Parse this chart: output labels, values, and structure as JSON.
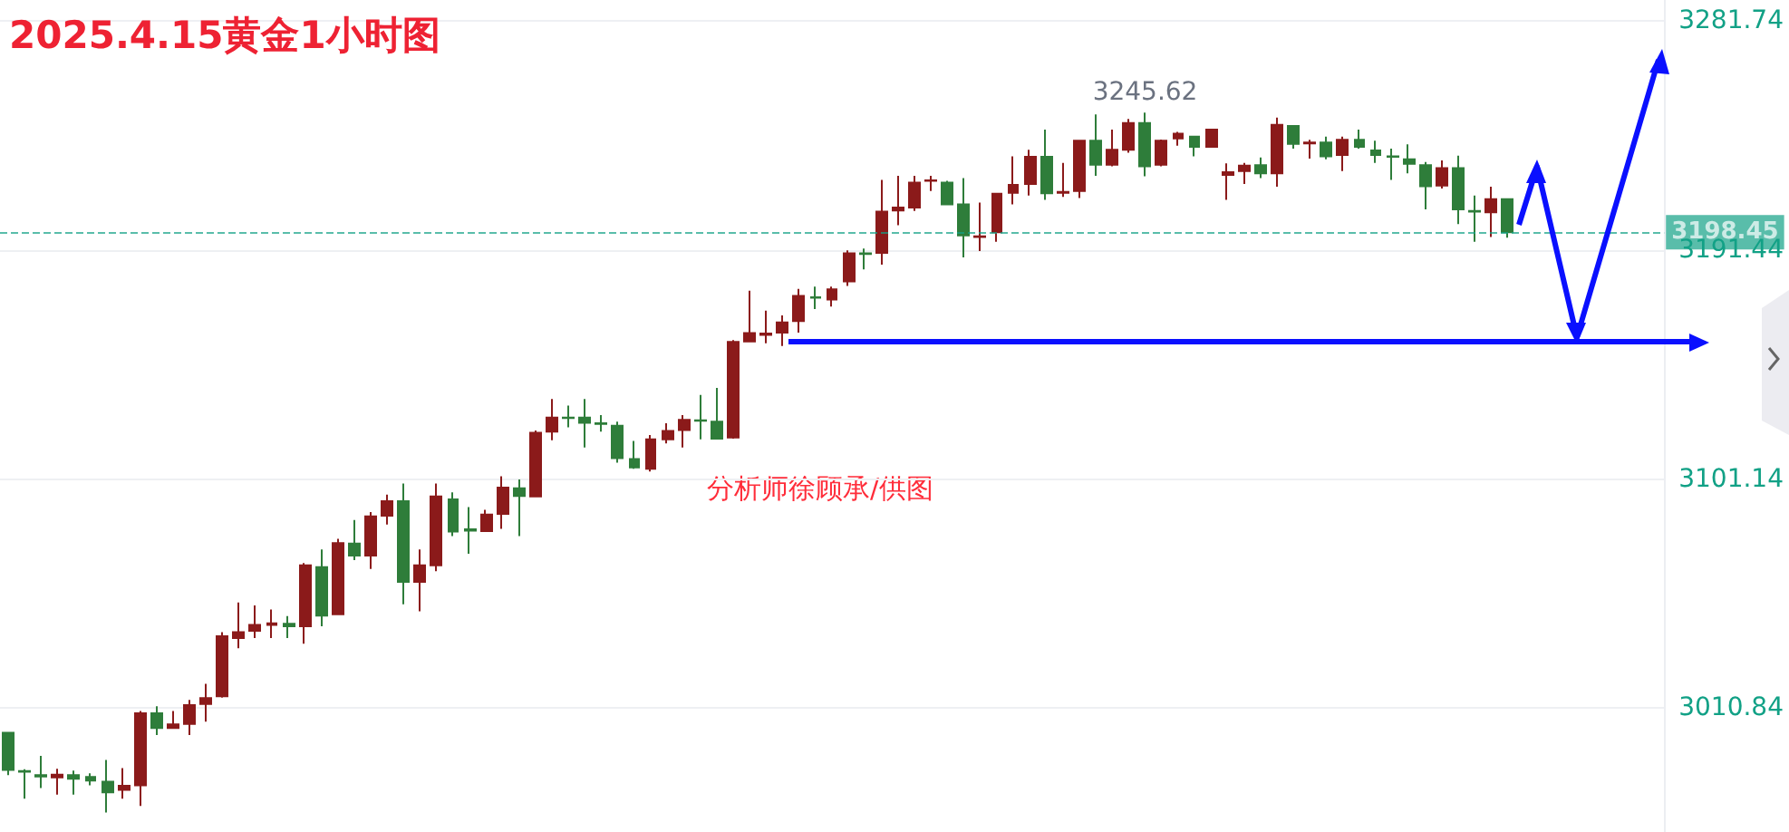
{
  "chart_data": {
    "type": "candlestick",
    "title": "2025.4.15黄金1小时图",
    "annotations": [
      {
        "text": "3245.62",
        "y": 3245.62
      },
      "分析师徐顾承/供图"
    ],
    "categories": [
      null,
      null,
      null,
      null,
      null,
      null,
      null,
      null,
      null,
      null,
      null,
      null,
      null,
      null,
      null,
      null,
      null,
      null,
      null,
      null,
      null,
      null,
      null,
      null,
      null,
      null,
      null,
      null,
      null,
      null,
      null,
      null,
      null,
      null,
      null,
      null,
      null,
      null,
      null,
      null,
      null,
      null,
      null,
      null,
      null,
      null,
      null,
      null,
      null,
      null,
      null,
      null,
      null,
      null,
      null,
      null,
      null,
      null,
      null,
      null,
      null,
      null,
      null,
      null,
      null,
      null,
      null,
      null,
      null,
      null,
      null,
      null,
      null,
      null,
      null,
      null,
      null,
      null,
      null,
      null,
      null,
      null,
      null,
      null,
      null,
      null,
      null,
      null,
      null,
      null,
      null,
      null,
      null,
      null,
      null,
      null,
      null,
      null,
      null,
      null,
      null
    ],
    "ohlc": [
      [
        3001.1,
        3001.1,
        2984.4,
        2986.5
      ],
      [
        2986.0,
        2986.7,
        2975.1,
        2985.8
      ],
      [
        2984.4,
        2992.0,
        2979.3,
        2983.9
      ],
      [
        2983.5,
        2986.9,
        2976.7,
        2984.6
      ],
      [
        2984.4,
        2986.2,
        2976.7,
        2983.0
      ],
      [
        2983.7,
        2985.1,
        2980.4,
        2982.3
      ],
      [
        2981.8,
        2990.4,
        2969.7,
        2977.6
      ],
      [
        2978.6,
        2987.2,
        2975.1,
        2980.2
      ],
      [
        2980.4,
        3009.7,
        2972.3,
        3008.8
      ],
      [
        3008.8,
        3011.6,
        3000.2,
        3003.0
      ],
      [
        3003.0,
        3009.7,
        3003.0,
        3004.4
      ],
      [
        3004.6,
        3014.1,
        3000.2,
        3012.0
      ],
      [
        3012.5,
        3020.4,
        3005.5,
        3014.8
      ],
      [
        3015.5,
        3040.8,
        3015.0,
        3039.2
      ],
      [
        3038.5,
        3052.5,
        3034.4,
        3040.8
      ],
      [
        3041.3,
        3051.3,
        3038.5,
        3043.6
      ],
      [
        3043.6,
        3049.7,
        3038.5,
        3044.3
      ],
      [
        3044.1,
        3047.1,
        3038.5,
        3043.1
      ],
      [
        3043.1,
        3068.0,
        3036.2,
        3067.1
      ],
      [
        3066.4,
        3073.4,
        3043.1,
        3047.3
      ],
      [
        3047.8,
        3077.6,
        3047.8,
        3075.9
      ],
      [
        3075.7,
        3085.0,
        3069.2,
        3071.0
      ],
      [
        3071.0,
        3088.1,
        3065.7,
        3086.4
      ],
      [
        3086.7,
        3095.0,
        3083.2,
        3092.4
      ],
      [
        3092.4,
        3099.4,
        3051.8,
        3060.6
      ],
      [
        3060.6,
        3073.4,
        3049.0,
        3067.1
      ],
      [
        3067.1,
        3099.4,
        3064.8,
        3094.3
      ],
      [
        3093.1,
        3095.9,
        3078.7,
        3080.4
      ],
      [
        3081.3,
        3090.1,
        3071.7,
        3080.8
      ],
      [
        3080.6,
        3089.0,
        3080.6,
        3087.1
      ],
      [
        3087.4,
        3102.2,
        3081.5,
        3097.8
      ],
      [
        3097.5,
        3101.0,
        3078.7,
        3094.5
      ],
      [
        3094.3,
        3120.3,
        3094.3,
        3119.4
      ],
      [
        3119.8,
        3132.7,
        3116.4,
        3125.4
      ],
      [
        3125.4,
        3130.1,
        3121.5,
        3125.2
      ],
      [
        3125.4,
        3132.7,
        3113.6,
        3123.3
      ],
      [
        3123.1,
        3126.4,
        3119.8,
        3122.9
      ],
      [
        3122.2,
        3123.8,
        3107.6,
        3109.4
      ],
      [
        3109.0,
        3116.2,
        3105.2,
        3105.7
      ],
      [
        3105.2,
        3118.5,
        3104.1,
        3116.8
      ],
      [
        3116.8,
        3123.1,
        3115.2,
        3120.1
      ],
      [
        3120.5,
        3126.4,
        3113.6,
        3124.5
      ],
      [
        3124.3,
        3134.3,
        3116.8,
        3124.1
      ],
      [
        3123.8,
        3137.1,
        3117.1,
        3117.1
      ],
      [
        3117.5,
        3155.9,
        3117.1,
        3155.2
      ],
      [
        3155.4,
        3175.4,
        3155.4,
        3158.7
      ],
      [
        3158.0,
        3167.5,
        3154.7,
        3158.5
      ],
      [
        3158.9,
        3165.7,
        3153.6,
        3162.9
      ],
      [
        3163.4,
        3176.1,
        3158.9,
        3173.3
      ],
      [
        3172.8,
        3177.0,
        3168.2,
        3172.6
      ],
      [
        3171.9,
        3177.0,
        3169.1,
        3175.9
      ],
      [
        3179.1,
        3191.3,
        3177.3,
        3190.1
      ],
      [
        3190.1,
        3192.0,
        3183.8,
        3189.9
      ],
      [
        3190.3,
        3219.1,
        3185.7,
        3206.6
      ],
      [
        3207.0,
        3220.7,
        3201.2,
        3208.2
      ],
      [
        3208.2,
        3220.7,
        3206.8,
        3218.0
      ],
      [
        3218.7,
        3220.7,
        3214.7,
        3218.9
      ],
      [
        3218.0,
        3218.7,
        3209.4,
        3209.4
      ],
      [
        3209.4,
        3219.8,
        3188.5,
        3197.2
      ],
      [
        3196.6,
        3210.1,
        3191.0,
        3196.8
      ],
      [
        3198.4,
        3213.6,
        3194.7,
        3213.6
      ],
      [
        3214.0,
        3228.4,
        3209.4,
        3217.1
      ],
      [
        3217.5,
        3231.0,
        3212.9,
        3228.2
      ],
      [
        3228.2,
        3238.9,
        3211.2,
        3213.8
      ],
      [
        3214.0,
        3225.8,
        3212.4,
        3214.3
      ],
      [
        3214.7,
        3234.5,
        3211.9,
        3234.5
      ],
      [
        3234.5,
        3244.9,
        3220.7,
        3225.1
      ],
      [
        3225.1,
        3238.9,
        3224.4,
        3231.0
      ],
      [
        3231.0,
        3243.1,
        3229.8,
        3241.5
      ],
      [
        3241.5,
        3245.62,
        3220.5,
        3224.4
      ],
      [
        3225.1,
        3235.0,
        3224.4,
        3234.5
      ],
      [
        3235.4,
        3238.0,
        3232.6,
        3237.3
      ],
      [
        3236.1,
        3236.5,
        3228.4,
        3232.1
      ],
      [
        3232.1,
        3239.2,
        3231.8,
        3238.9
      ],
      [
        3221.0,
        3225.6,
        3211.2,
        3222.1
      ],
      [
        3222.6,
        3225.8,
        3217.5,
        3224.7
      ],
      [
        3224.9,
        3227.9,
        3219.8,
        3221.7
      ],
      [
        3221.7,
        3243.6,
        3216.4,
        3240.8
      ],
      [
        3240.3,
        3240.5,
        3231.4,
        3233.3
      ],
      [
        3233.5,
        3234.9,
        3227.5,
        3233.8
      ],
      [
        3233.8,
        3236.1,
        3227.2,
        3228.4
      ],
      [
        3228.9,
        3236.1,
        3222.6,
        3234.9
      ],
      [
        3234.9,
        3238.9,
        3231.4,
        3232.1
      ],
      [
        3230.7,
        3234.5,
        3225.8,
        3228.9
      ],
      [
        3228.4,
        3231.4,
        3219.1,
        3228.2
      ],
      [
        3227.2,
        3233.1,
        3221.7,
        3225.4
      ],
      [
        3224.9,
        3226.1,
        3207.5,
        3216.6
      ],
      [
        3216.8,
        3226.8,
        3215.7,
        3223.7
      ],
      [
        3223.7,
        3228.6,
        3201.7,
        3207.5
      ],
      [
        3206.8,
        3212.9,
        3194.7,
        3206.6
      ],
      [
        3206.3,
        3216.4,
        3196.6,
        3211.5
      ],
      [
        3211.5,
        3211.8,
        3196.3,
        3198.45
      ],
      null,
      null,
      null,
      null,
      null,
      null,
      null,
      null,
      null
    ],
    "colors": [
      "#2e7d3a",
      "#2e7d3a",
      "#2e7d3a",
      "#8b1a1a",
      "#2e7d3a",
      "#2e7d3a",
      "#2e7d3a",
      "#8b1a1a",
      "#8b1a1a",
      "#2e7d3a",
      "#8b1a1a",
      "#8b1a1a",
      "#8b1a1a",
      "#8b1a1a",
      "#8b1a1a",
      "#8b1a1a",
      "#8b1a1a",
      "#2e7d3a",
      "#8b1a1a",
      "#2e7d3a",
      "#8b1a1a",
      "#2e7d3a",
      "#8b1a1a",
      "#8b1a1a",
      "#2e7d3a",
      "#8b1a1a",
      "#8b1a1a",
      "#2e7d3a",
      "#2e7d3a",
      "#8b1a1a",
      "#8b1a1a",
      "#2e7d3a",
      "#8b1a1a",
      "#8b1a1a",
      "#2e7d3a",
      "#2e7d3a",
      "#2e7d3a",
      "#2e7d3a",
      "#2e7d3a",
      "#8b1a1a",
      "#8b1a1a",
      "#8b1a1a",
      "#2e7d3a",
      "#2e7d3a",
      "#8b1a1a",
      "#8b1a1a",
      "#8b1a1a",
      "#8b1a1a",
      "#8b1a1a",
      "#2e7d3a",
      "#8b1a1a",
      "#8b1a1a",
      "#2e7d3a",
      "#8b1a1a",
      "#8b1a1a",
      "#8b1a1a",
      "#8b1a1a",
      "#2e7d3a",
      "#2e7d3a",
      "#8b1a1a",
      "#8b1a1a",
      "#8b1a1a",
      "#8b1a1a",
      "#2e7d3a",
      "#8b1a1a",
      "#8b1a1a",
      "#2e7d3a",
      "#8b1a1a",
      "#8b1a1a",
      "#2e7d3a",
      "#8b1a1a",
      "#8b1a1a",
      "#2e7d3a",
      "#8b1a1a",
      "#8b1a1a",
      "#8b1a1a",
      "#2e7d3a",
      "#8b1a1a",
      "#2e7d3a",
      "#8b1a1a",
      "#2e7d3a",
      "#8b1a1a",
      "#2e7d3a",
      "#2e7d3a",
      "#2e7d3a",
      "#2e7d3a",
      "#2e7d3a",
      "#8b1a1a",
      "#2e7d3a",
      "#2e7d3a",
      "#8b1a1a",
      "#2e7d3a",
      null,
      null,
      null,
      null,
      null,
      null,
      null,
      null,
      null
    ],
    "ylim": [
      2962,
      3290
    ],
    "yticks": [
      3010.84,
      3101.14,
      3191.44,
      3281.74
    ],
    "ref_lines": [
      {
        "axis": "y",
        "value": 3198.45,
        "label": "3198.45",
        "color": "#12a186",
        "line_style": "dashed"
      },
      {
        "axis": "y",
        "value": 3155.3,
        "color": "#0a10ff",
        "line_style": "solid"
      }
    ],
    "grid": "y",
    "tick_labels": "y"
  }
}
